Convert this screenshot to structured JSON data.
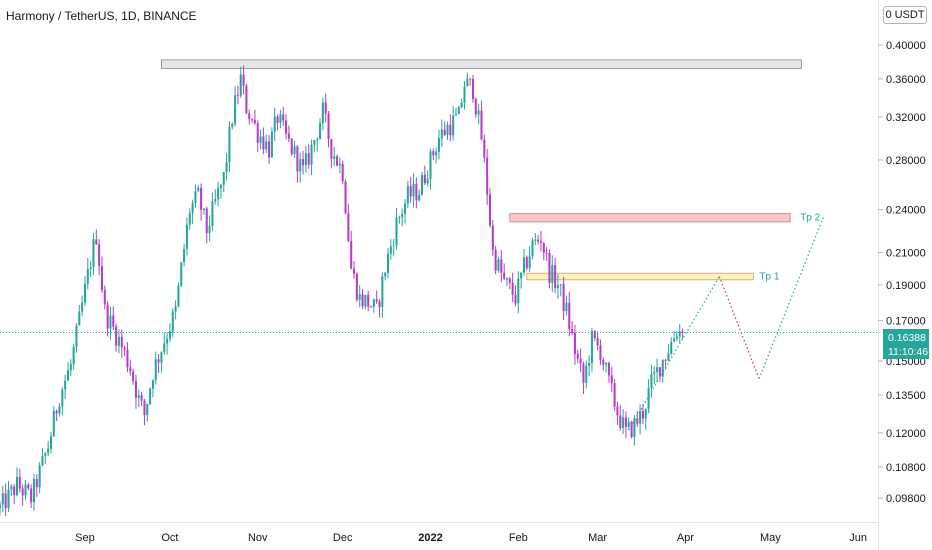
{
  "header": {
    "symbol": "Harmony / TetherUS",
    "interval": "1D",
    "exchange": "BINANCE",
    "separator": ", "
  },
  "currency_label": "0 USDT",
  "last_price": {
    "value": "0.16388",
    "countdown": "11:10:46"
  },
  "annotations": {
    "tp1_label": "Tp 1",
    "tp2_label": "Tp 2"
  },
  "colors": {
    "up": "#26a69a",
    "down": "#b43cc8",
    "tp1_zone": "#fff1c4",
    "tp2_zone": "#f8c8cc",
    "resistance_zone": "#e6e6e6",
    "projection_up": "#26a69a",
    "projection_down": "#e0303f",
    "label_teal": "#21a39a"
  },
  "chart_data": {
    "type": "candlestick",
    "symbol": "Harmony / TetherUS",
    "interval": "1D",
    "exchange": "BINANCE",
    "y_scale": "log",
    "y_axis": {
      "ticks": [
        "0.40000",
        "0.36000",
        "0.32000",
        "0.28000",
        "0.24000",
        "0.21000",
        "0.19000",
        "0.17000",
        "0.15000",
        "0.13500",
        "0.12000",
        "0.10800",
        "0.09800"
      ],
      "tick_values": [
        0.4,
        0.36,
        0.32,
        0.28,
        0.24,
        0.21,
        0.19,
        0.17,
        0.15,
        0.135,
        0.12,
        0.108,
        0.098
      ],
      "range": [
        0.091,
        0.46
      ]
    },
    "x_axis": {
      "ticks": [
        "Sep",
        "Oct",
        "Nov",
        "Dec",
        "2022",
        "Feb",
        "Mar",
        "Apr",
        "May",
        "Jun"
      ],
      "tick_dates": [
        "2021-09-01",
        "2021-10-01",
        "2021-11-01",
        "2021-12-01",
        "2022-01-01",
        "2022-02-01",
        "2022-03-01",
        "2022-04-01",
        "2022-05-01",
        "2022-06-01"
      ],
      "bold_ticks": [
        "2022"
      ],
      "range": [
        "2021-08-02",
        "2022-06-08"
      ]
    },
    "current_price": 0.16388,
    "zones": [
      {
        "name": "resistance",
        "from": "2021-09-28",
        "to": "2022-05-12",
        "low": 0.372,
        "high": 0.382
      },
      {
        "name": "Tp 2",
        "from": "2022-01-29",
        "to": "2022-05-08",
        "low": 0.231,
        "high": 0.237
      },
      {
        "name": "Tp 1",
        "from": "2022-02-04",
        "to": "2022-04-25",
        "low": 0.193,
        "high": 0.197
      }
    ],
    "projection": [
      {
        "date": "2022-03-12",
        "value": 0.121,
        "color": "up"
      },
      {
        "date": "2022-04-13",
        "value": 0.195,
        "color": "up"
      },
      {
        "date": "2022-04-27",
        "value": 0.142,
        "color": "down"
      },
      {
        "date": "2022-05-20",
        "value": 0.236,
        "color": "up"
      }
    ],
    "path": [
      {
        "date": "2021-08-02",
        "value": 0.095
      },
      {
        "date": "2021-08-08",
        "value": 0.102
      },
      {
        "date": "2021-08-13",
        "value": 0.098
      },
      {
        "date": "2021-08-19",
        "value": 0.115
      },
      {
        "date": "2021-08-23",
        "value": 0.135
      },
      {
        "date": "2021-08-27",
        "value": 0.148
      },
      {
        "date": "2021-08-31",
        "value": 0.178
      },
      {
        "date": "2021-09-03",
        "value": 0.205
      },
      {
        "date": "2021-09-05",
        "value": 0.222
      },
      {
        "date": "2021-09-08",
        "value": 0.175
      },
      {
        "date": "2021-09-13",
        "value": 0.16
      },
      {
        "date": "2021-09-17",
        "value": 0.147
      },
      {
        "date": "2021-09-20",
        "value": 0.133
      },
      {
        "date": "2021-09-22",
        "value": 0.127
      },
      {
        "date": "2021-09-25",
        "value": 0.145
      },
      {
        "date": "2021-09-29",
        "value": 0.16
      },
      {
        "date": "2021-10-03",
        "value": 0.175
      },
      {
        "date": "2021-10-05",
        "value": 0.2
      },
      {
        "date": "2021-10-08",
        "value": 0.24
      },
      {
        "date": "2021-10-11",
        "value": 0.25
      },
      {
        "date": "2021-10-14",
        "value": 0.225
      },
      {
        "date": "2021-10-17",
        "value": 0.245
      },
      {
        "date": "2021-10-20",
        "value": 0.265
      },
      {
        "date": "2021-10-23",
        "value": 0.32
      },
      {
        "date": "2021-10-26",
        "value": 0.36
      },
      {
        "date": "2021-10-28",
        "value": 0.33
      },
      {
        "date": "2021-11-01",
        "value": 0.305
      },
      {
        "date": "2021-11-05",
        "value": 0.29
      },
      {
        "date": "2021-11-08",
        "value": 0.32
      },
      {
        "date": "2021-11-11",
        "value": 0.3
      },
      {
        "date": "2021-11-14",
        "value": 0.285
      },
      {
        "date": "2021-11-17",
        "value": 0.27
      },
      {
        "date": "2021-11-20",
        "value": 0.29
      },
      {
        "date": "2021-11-24",
        "value": 0.325
      },
      {
        "date": "2021-11-27",
        "value": 0.29
      },
      {
        "date": "2021-12-01",
        "value": 0.27
      },
      {
        "date": "2021-12-04",
        "value": 0.2
      },
      {
        "date": "2021-12-07",
        "value": 0.182
      },
      {
        "date": "2021-12-10",
        "value": 0.18
      },
      {
        "date": "2021-12-13",
        "value": 0.175
      },
      {
        "date": "2021-12-16",
        "value": 0.2
      },
      {
        "date": "2021-12-20",
        "value": 0.23
      },
      {
        "date": "2021-12-24",
        "value": 0.25
      },
      {
        "date": "2021-12-28",
        "value": 0.255
      },
      {
        "date": "2022-01-01",
        "value": 0.28
      },
      {
        "date": "2022-01-04",
        "value": 0.3
      },
      {
        "date": "2022-01-07",
        "value": 0.31
      },
      {
        "date": "2022-01-11",
        "value": 0.32
      },
      {
        "date": "2022-01-13",
        "value": 0.355
      },
      {
        "date": "2022-01-16",
        "value": 0.35
      },
      {
        "date": "2022-01-19",
        "value": 0.3
      },
      {
        "date": "2022-01-21",
        "value": 0.255
      },
      {
        "date": "2022-01-23",
        "value": 0.21
      },
      {
        "date": "2022-01-27",
        "value": 0.192
      },
      {
        "date": "2022-01-31",
        "value": 0.183
      },
      {
        "date": "2022-02-03",
        "value": 0.2
      },
      {
        "date": "2022-02-06",
        "value": 0.215
      },
      {
        "date": "2022-02-09",
        "value": 0.22
      },
      {
        "date": "2022-02-12",
        "value": 0.198
      },
      {
        "date": "2022-02-15",
        "value": 0.19
      },
      {
        "date": "2022-02-18",
        "value": 0.175
      },
      {
        "date": "2022-02-21",
        "value": 0.155
      },
      {
        "date": "2022-02-24",
        "value": 0.14
      },
      {
        "date": "2022-02-27",
        "value": 0.16
      },
      {
        "date": "2022-03-02",
        "value": 0.155
      },
      {
        "date": "2022-03-05",
        "value": 0.14
      },
      {
        "date": "2022-03-08",
        "value": 0.128
      },
      {
        "date": "2022-03-11",
        "value": 0.12
      },
      {
        "date": "2022-03-14",
        "value": 0.123
      },
      {
        "date": "2022-03-17",
        "value": 0.128
      },
      {
        "date": "2022-03-20",
        "value": 0.14
      },
      {
        "date": "2022-03-23",
        "value": 0.148
      },
      {
        "date": "2022-03-26",
        "value": 0.156
      },
      {
        "date": "2022-03-29",
        "value": 0.165
      },
      {
        "date": "2022-03-31",
        "value": 0.16388
      }
    ]
  }
}
